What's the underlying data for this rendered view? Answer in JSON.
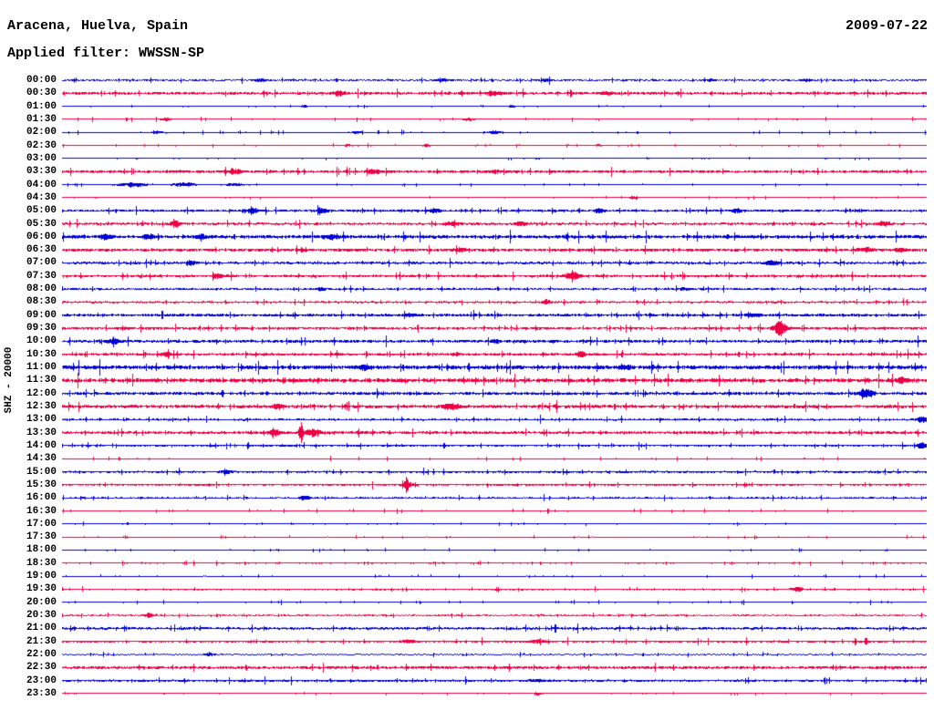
{
  "header": {
    "title": "Aracena, Huelva, Spain",
    "filter": "Applied filter: WWSSN-SP",
    "date": "2009-07-22"
  },
  "axis": {
    "left_label": "SHZ - 20000"
  },
  "colors": {
    "blue": "#0000d4",
    "red": "#ee0044",
    "text": "#000000",
    "background": "#ffffff"
  },
  "chart_data": {
    "type": "line",
    "title": "24-hour helicorder seismogram, one 30-minute trace per row",
    "station": "Aracena, Huelva, Spain",
    "channel_scale": "SHZ - 20000",
    "filter": "WWSSN-SP",
    "date": "2009-07-22",
    "trace_interval_minutes": 30,
    "x_range_fraction": [
      0,
      1
    ],
    "series": [
      {
        "time": "00:00",
        "color": "blue",
        "noise": 0.9,
        "bursts": [
          [
            0.23,
            1.5,
            5
          ],
          [
            0.44,
            1.5,
            5
          ],
          [
            0.56,
            1.5,
            4
          ],
          [
            0.75,
            1.5,
            4
          ],
          [
            0.86,
            1.5,
            4
          ]
        ]
      },
      {
        "time": "00:30",
        "color": "red",
        "noise": 1.4,
        "bursts": [
          [
            0.32,
            3,
            4
          ],
          [
            0.5,
            2,
            6
          ],
          [
            0.63,
            1.5,
            6
          ]
        ]
      },
      {
        "time": "01:00",
        "color": "blue",
        "noise": 0.45,
        "bursts": [
          [
            0.28,
            1.5,
            3
          ],
          [
            0.52,
            1.5,
            3
          ]
        ]
      },
      {
        "time": "01:30",
        "color": "red",
        "noise": 0.7,
        "bursts": [
          [
            0.12,
            1.5,
            4
          ],
          [
            0.47,
            1.5,
            4
          ]
        ]
      },
      {
        "time": "02:00",
        "color": "blue",
        "noise": 0.75,
        "bursts": [
          [
            0.11,
            1.5,
            4
          ],
          [
            0.34,
            1.5,
            4
          ],
          [
            0.5,
            1.5,
            5
          ]
        ]
      },
      {
        "time": "02:30",
        "color": "red",
        "noise": 0.55,
        "bursts": [
          [
            0.33,
            1.5,
            3
          ],
          [
            0.42,
            1.5,
            3
          ],
          [
            0.62,
            1,
            3
          ]
        ]
      },
      {
        "time": "03:00",
        "color": "blue",
        "noise": 0.4,
        "bursts": [
          [
            0.55,
            1,
            3
          ]
        ]
      },
      {
        "time": "03:30",
        "color": "red",
        "noise": 1.4,
        "bursts": [
          [
            0.2,
            2,
            6
          ],
          [
            0.36,
            2,
            6
          ],
          [
            0.5,
            1.5,
            6
          ]
        ]
      },
      {
        "time": "04:00",
        "color": "blue",
        "noise": 0.6,
        "bursts": [
          [
            0.08,
            2.5,
            10
          ],
          [
            0.14,
            2.5,
            8
          ],
          [
            0.2,
            1.5,
            8
          ]
        ]
      },
      {
        "time": "04:30",
        "color": "red",
        "noise": 0.5,
        "bursts": [
          [
            0.66,
            1.5,
            3
          ]
        ]
      },
      {
        "time": "05:00",
        "color": "blue",
        "noise": 1.3,
        "bursts": [
          [
            0.22,
            2.5,
            5
          ],
          [
            0.3,
            2.5,
            4
          ],
          [
            0.43,
            2,
            4
          ],
          [
            0.62,
            2,
            4
          ],
          [
            0.78,
            2,
            4
          ]
        ]
      },
      {
        "time": "05:30",
        "color": "red",
        "noise": 1.3,
        "bursts": [
          [
            0.13,
            2.5,
            4
          ],
          [
            0.45,
            2.5,
            5
          ],
          [
            0.53,
            2.5,
            4
          ],
          [
            0.95,
            2.5,
            5
          ]
        ]
      },
      {
        "time": "06:00",
        "color": "blue",
        "noise": 1.8,
        "bursts": [
          [
            0.05,
            2.5,
            4
          ],
          [
            0.1,
            2.5,
            4
          ],
          [
            0.16,
            2.5,
            4
          ],
          [
            0.31,
            2.5,
            4
          ]
        ]
      },
      {
        "time": "06:30",
        "color": "red",
        "noise": 1.6,
        "bursts": [
          [
            0.46,
            2,
            4
          ],
          [
            0.93,
            2.5,
            5
          ],
          [
            0.97,
            2.5,
            4
          ]
        ]
      },
      {
        "time": "07:00",
        "color": "blue",
        "noise": 1.3,
        "bursts": [
          [
            0.15,
            2.5,
            4
          ],
          [
            0.82,
            2.5,
            5
          ]
        ]
      },
      {
        "time": "07:30",
        "color": "red",
        "noise": 1.4,
        "bursts": [
          [
            0.18,
            2.5,
            4
          ],
          [
            0.59,
            3.5,
            6
          ]
        ]
      },
      {
        "time": "08:00",
        "color": "blue",
        "noise": 1.1,
        "bursts": [
          [
            0.3,
            1.5,
            4
          ],
          [
            0.72,
            1.5,
            4
          ]
        ]
      },
      {
        "time": "08:30",
        "color": "red",
        "noise": 1.1,
        "bursts": [
          [
            0.56,
            2.5,
            3
          ]
        ]
      },
      {
        "time": "09:00",
        "color": "blue",
        "noise": 1.5,
        "bursts": [
          [
            0.4,
            1.5,
            5
          ],
          [
            0.8,
            1.5,
            5
          ]
        ]
      },
      {
        "time": "09:30",
        "color": "red",
        "noise": 1.4,
        "bursts": [
          [
            0.83,
            6.5,
            5
          ]
        ]
      },
      {
        "time": "10:00",
        "color": "blue",
        "noise": 1.5,
        "bursts": [
          [
            0.06,
            2.5,
            5
          ],
          [
            0.5,
            1.5,
            4
          ]
        ]
      },
      {
        "time": "10:30",
        "color": "red",
        "noise": 1.4,
        "bursts": [
          [
            0.12,
            2.5,
            4
          ],
          [
            0.6,
            3.5,
            3
          ]
        ]
      },
      {
        "time": "11:00",
        "color": "blue",
        "noise": 2.1,
        "bursts": [
          [
            0.35,
            2,
            5
          ],
          [
            0.65,
            2,
            5
          ]
        ]
      },
      {
        "time": "11:30",
        "color": "red",
        "noise": 2.1,
        "bursts": [
          [
            0.97,
            3,
            4
          ]
        ]
      },
      {
        "time": "12:00",
        "color": "blue",
        "noise": 1.5,
        "bursts": [
          [
            0.93,
            4.5,
            6
          ]
        ]
      },
      {
        "time": "12:30",
        "color": "red",
        "noise": 1.7,
        "bursts": [
          [
            0.25,
            2.5,
            4
          ],
          [
            0.45,
            3.5,
            6
          ]
        ]
      },
      {
        "time": "13:00",
        "color": "blue",
        "noise": 1.1,
        "bursts": [
          [
            0.995,
            3.5,
            4
          ]
        ]
      },
      {
        "time": "13:30",
        "color": "red",
        "noise": 1.5,
        "bursts": [
          [
            0.245,
            4,
            4
          ],
          [
            0.276,
            13,
            1.5
          ],
          [
            0.29,
            4,
            6
          ]
        ]
      },
      {
        "time": "14:00",
        "color": "blue",
        "noise": 1.1,
        "bursts": [
          [
            0.995,
            3.5,
            4
          ]
        ]
      },
      {
        "time": "14:30",
        "color": "red",
        "noise": 0.75,
        "bursts": []
      },
      {
        "time": "15:00",
        "color": "blue",
        "noise": 1.1,
        "bursts": [
          [
            0.19,
            2.5,
            4
          ]
        ]
      },
      {
        "time": "15:30",
        "color": "red",
        "noise": 1.1,
        "bursts": [
          [
            0.398,
            8,
            1.2
          ],
          [
            0.4,
            2.5,
            5
          ]
        ]
      },
      {
        "time": "16:00",
        "color": "blue",
        "noise": 0.9,
        "bursts": [
          [
            0.28,
            2.5,
            4
          ]
        ]
      },
      {
        "time": "16:30",
        "color": "red",
        "noise": 0.75,
        "bursts": []
      },
      {
        "time": "17:00",
        "color": "blue",
        "noise": 0.55,
        "bursts": []
      },
      {
        "time": "17:30",
        "color": "red",
        "noise": 0.6,
        "bursts": []
      },
      {
        "time": "18:00",
        "color": "blue",
        "noise": 0.55,
        "bursts": []
      },
      {
        "time": "18:30",
        "color": "red",
        "noise": 0.8,
        "bursts": []
      },
      {
        "time": "19:00",
        "color": "blue",
        "noise": 0.6,
        "bursts": []
      },
      {
        "time": "19:30",
        "color": "red",
        "noise": 0.85,
        "bursts": [
          [
            0.85,
            2.5,
            4
          ]
        ]
      },
      {
        "time": "20:00",
        "color": "blue",
        "noise": 0.75,
        "bursts": []
      },
      {
        "time": "20:30",
        "color": "red",
        "noise": 0.85,
        "bursts": [
          [
            0.1,
            2.5,
            3
          ]
        ]
      },
      {
        "time": "21:00",
        "color": "blue",
        "noise": 1.3,
        "bursts": []
      },
      {
        "time": "21:30",
        "color": "red",
        "noise": 1.2,
        "bursts": [
          [
            0.4,
            1.5,
            5
          ],
          [
            0.55,
            1.5,
            5
          ]
        ]
      },
      {
        "time": "22:00",
        "color": "blue",
        "noise": 0.75,
        "bursts": [
          [
            0.17,
            1.5,
            4
          ]
        ]
      },
      {
        "time": "22:30",
        "color": "red",
        "noise": 1.5,
        "bursts": []
      },
      {
        "time": "23:00",
        "color": "blue",
        "noise": 1.2,
        "bursts": [
          [
            0.55,
            1.5,
            5
          ]
        ]
      },
      {
        "time": "23:30",
        "color": "red",
        "noise": 0.45,
        "bursts": [
          [
            0.55,
            1.5,
            4
          ]
        ]
      }
    ]
  }
}
